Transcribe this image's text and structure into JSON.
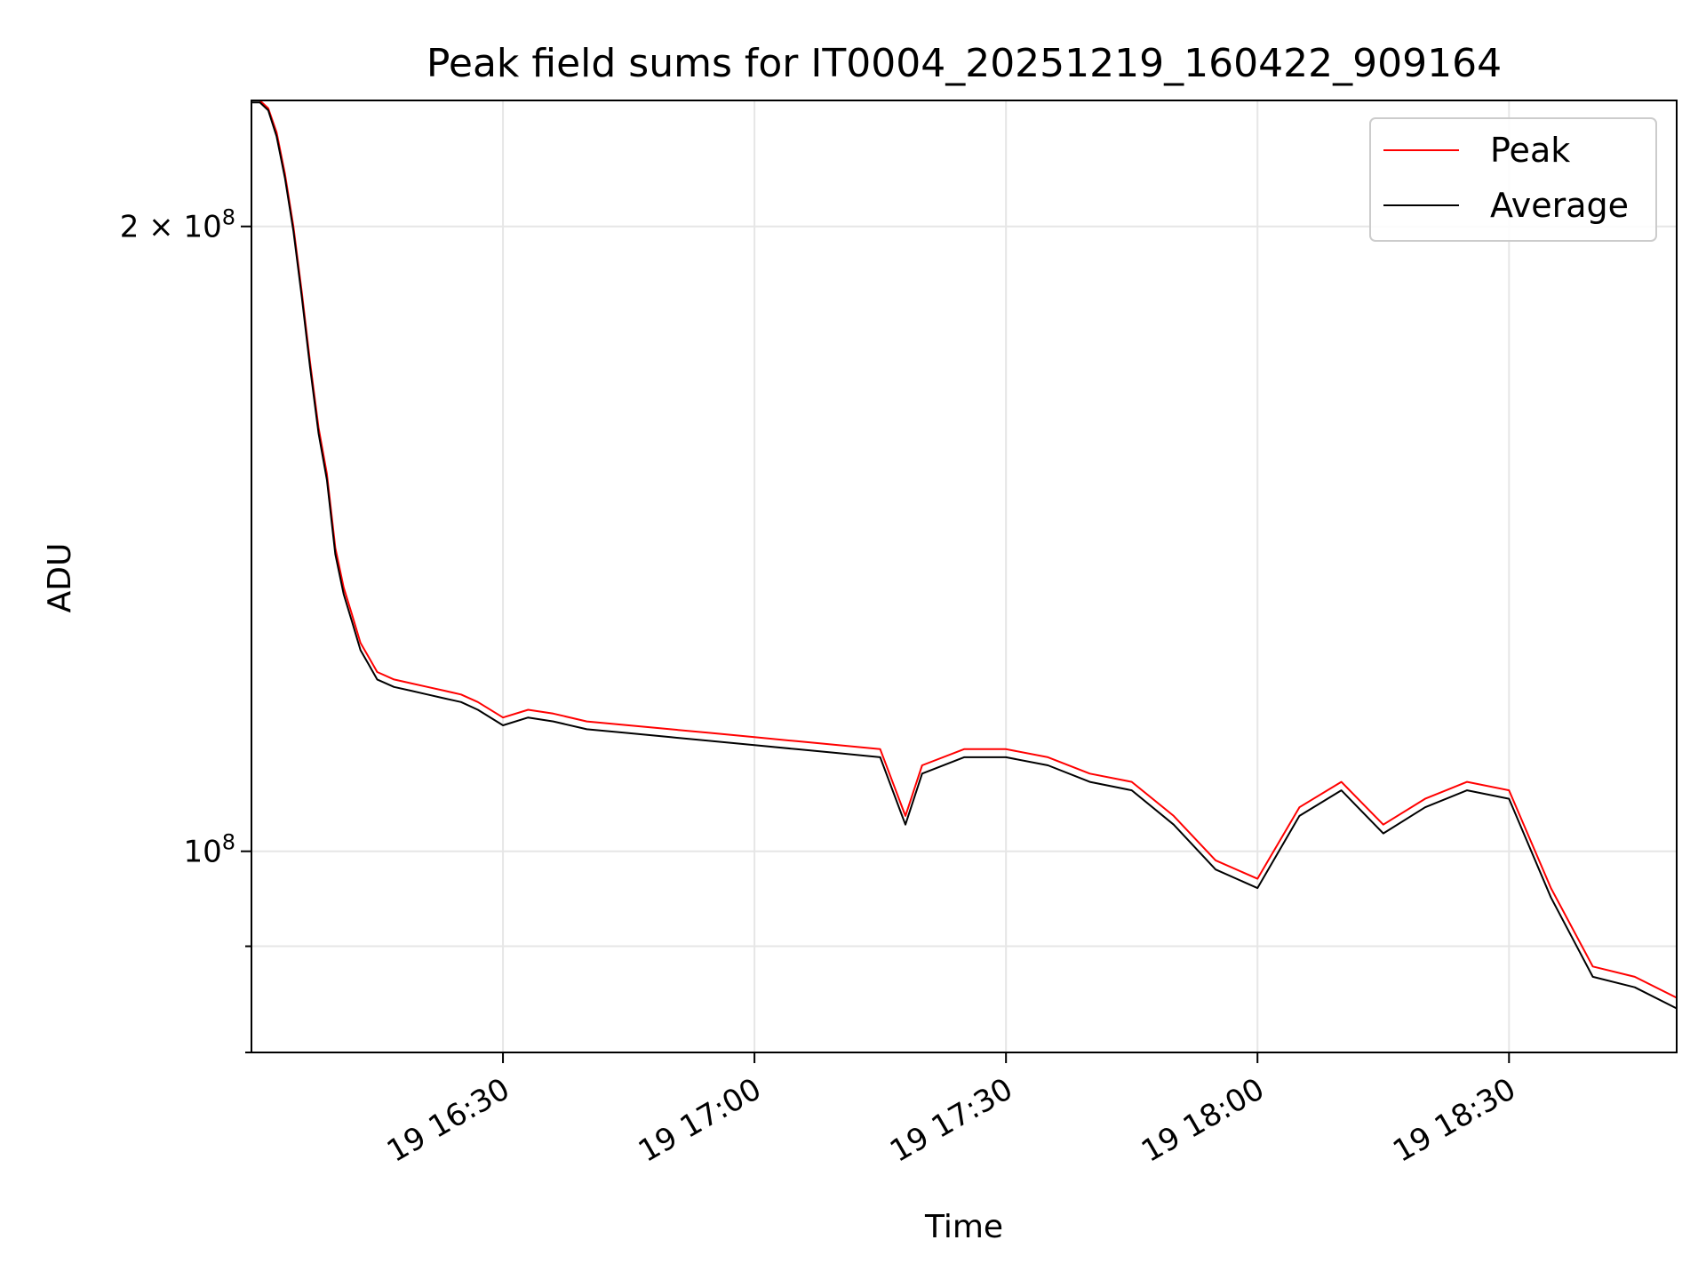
{
  "chart_data": {
    "type": "line",
    "title": "Peak field sums for IT0004_20251219_160422_909164",
    "xlabel": "Time",
    "ylabel": "ADU",
    "yscale": "log",
    "grid": true,
    "legend_position": "top-right",
    "xlim_minutes": [
      0,
      170
    ],
    "ylim": [
      80000000,
      230000000
    ],
    "x_ticks": [
      {
        "minutes": 30,
        "label": "19 16:30"
      },
      {
        "minutes": 60,
        "label": "19 17:00"
      },
      {
        "minutes": 90,
        "label": "19 17:30"
      },
      {
        "minutes": 120,
        "label": "19 18:00"
      },
      {
        "minutes": 150,
        "label": "19 18:30"
      }
    ],
    "y_ticks": [
      {
        "value": 100000000,
        "base": "10",
        "exponent": "8",
        "prefix": ""
      },
      {
        "value": 200000000,
        "base": "10",
        "exponent": "8",
        "prefix": "2 × "
      }
    ],
    "y_minor_ticks": [
      90000000,
      80000000
    ],
    "x_minutes": [
      0,
      1,
      2,
      3,
      4,
      5,
      6,
      7,
      8,
      9,
      10,
      11,
      12,
      13,
      14,
      15,
      17,
      19,
      21,
      23,
      25,
      27,
      30,
      33,
      36,
      40,
      45,
      50,
      55,
      60,
      65,
      70,
      75,
      78,
      80,
      85,
      90,
      95,
      100,
      105,
      110,
      115,
      120,
      125,
      130,
      135,
      140,
      145,
      150,
      155,
      160,
      165,
      170
    ],
    "series": [
      {
        "name": "Peak",
        "color": "#ff0000",
        "values": [
          230000000,
          230000000,
          228000000,
          222000000,
          212000000,
          200000000,
          186000000,
          172000000,
          160000000,
          152000000,
          140000000,
          134000000,
          130000000,
          126000000,
          124000000,
          122000000,
          121000000,
          120500000,
          120000000,
          119500000,
          119000000,
          118000000,
          116000000,
          117000000,
          116500000,
          115500000,
          115000000,
          114500000,
          114000000,
          113500000,
          113000000,
          112500000,
          112000000,
          104000000,
          110000000,
          112000000,
          112000000,
          111000000,
          109000000,
          108000000,
          104000000,
          99000000,
          97000000,
          105000000,
          108000000,
          103000000,
          106000000,
          108000000,
          107000000,
          96000000,
          88000000,
          87000000,
          85000000
        ]
      },
      {
        "name": "Average",
        "color": "#000000",
        "values": [
          229500000,
          229500000,
          227500000,
          221000000,
          211000000,
          199000000,
          185000000,
          171000000,
          159000000,
          151000000,
          139000000,
          133000000,
          129000000,
          125000000,
          123000000,
          121000000,
          120000000,
          119500000,
          119000000,
          118500000,
          118000000,
          117000000,
          115000000,
          116000000,
          115500000,
          114500000,
          114000000,
          113500000,
          113000000,
          112500000,
          112000000,
          111500000,
          111000000,
          103000000,
          109000000,
          111000000,
          111000000,
          110000000,
          108000000,
          107000000,
          103000000,
          98000000,
          96000000,
          104000000,
          107000000,
          102000000,
          105000000,
          107000000,
          106000000,
          95000000,
          87000000,
          86000000,
          84000000
        ]
      }
    ]
  }
}
